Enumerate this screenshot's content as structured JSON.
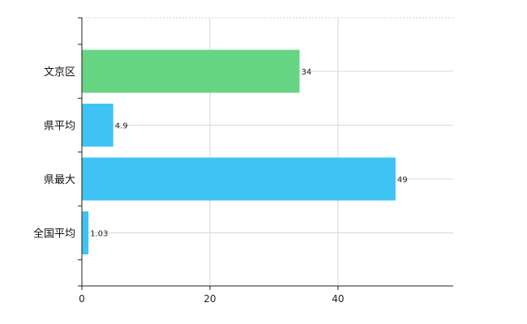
{
  "chart_data": {
    "type": "bar",
    "orientation": "horizontal",
    "categories": [
      "文京区",
      "県平均",
      "県最大",
      "全国平均"
    ],
    "values": [
      34,
      4.9,
      49,
      1.03
    ],
    "value_labels": [
      "34",
      "4.9",
      "49",
      "1.03"
    ],
    "bar_colors": [
      "#66d685",
      "#3ec3f4",
      "#3ec3f4",
      "#3ec3f4"
    ],
    "xlim": [
      0,
      58
    ],
    "xticks": [
      0,
      20,
      40
    ],
    "xtick_labels": [
      "0",
      "20",
      "40"
    ],
    "grid": true,
    "legend": "none"
  }
}
